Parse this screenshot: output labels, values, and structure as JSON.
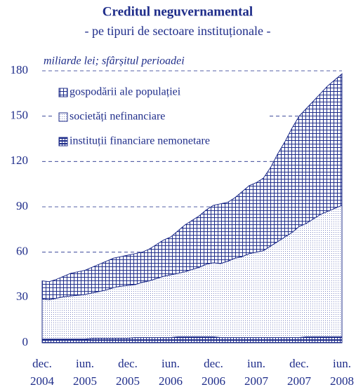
{
  "chart_data": {
    "type": "stacked_area",
    "title": "Creditul neguvernamental",
    "subtitle": "- pe tipuri de sectoare instituționale -",
    "y_label": "miliarde lei; sfârșitul perioadei",
    "categories": [
      "dec. 2004",
      null,
      null,
      null,
      null,
      null,
      "iun. 2005",
      null,
      null,
      null,
      null,
      null,
      "dec. 2005",
      null,
      null,
      null,
      null,
      null,
      "iun. 2006",
      null,
      null,
      null,
      null,
      null,
      "dec. 2006",
      null,
      null,
      null,
      null,
      null,
      "iun. 2007",
      null,
      null,
      null,
      null,
      null,
      "dec. 2007",
      null,
      null,
      null,
      null,
      null,
      "iun. 2008"
    ],
    "series": [
      {
        "name": "instituții financiare nemonetare",
        "color": "#1f2d8a",
        "values": [
          2.5,
          2.5,
          2.5,
          2.5,
          2.5,
          2.5,
          2.5,
          3,
          3,
          3,
          3,
          3,
          3,
          3.5,
          3.5,
          3.5,
          3.5,
          3.5,
          3.5,
          4,
          4,
          4,
          4,
          4,
          4,
          3.5,
          3.5,
          3.5,
          3.5,
          3.5,
          3.5,
          3.5,
          3.5,
          3.5,
          3.5,
          3.5,
          3.5,
          4,
          4,
          4,
          4,
          4,
          4
        ]
      },
      {
        "name": "societăți nefinanciare",
        "color": "#1f2d8a",
        "values": [
          26.5,
          26,
          27,
          28,
          28.5,
          29,
          29.5,
          30,
          31,
          32,
          33.5,
          34.5,
          35,
          35,
          36.5,
          37.5,
          39,
          40.5,
          41.5,
          42,
          43,
          44.5,
          46,
          48,
          49,
          49,
          50.5,
          52.5,
          53.5,
          55.5,
          56.5,
          57.5,
          60.5,
          63.5,
          66.5,
          69.5,
          73.5,
          75,
          78,
          81,
          83,
          85,
          87
        ]
      },
      {
        "name": "gospodării ale populației",
        "color": "#1f2d8a",
        "values": [
          12,
          12,
          12.5,
          13.5,
          15,
          15.5,
          16,
          17,
          18,
          19,
          19.5,
          19.5,
          20,
          20.5,
          20,
          21,
          22.5,
          24,
          25,
          28,
          31,
          32.5,
          34,
          36,
          38,
          39.5,
          39,
          40,
          43,
          45,
          46,
          48,
          52,
          58,
          63,
          69,
          73,
          76,
          78,
          80,
          83,
          85,
          87
        ]
      }
    ],
    "ylim": [
      0,
      180
    ],
    "yticks": [
      0,
      30,
      60,
      90,
      120,
      150,
      180
    ],
    "grid": true,
    "legend": "upper left"
  }
}
